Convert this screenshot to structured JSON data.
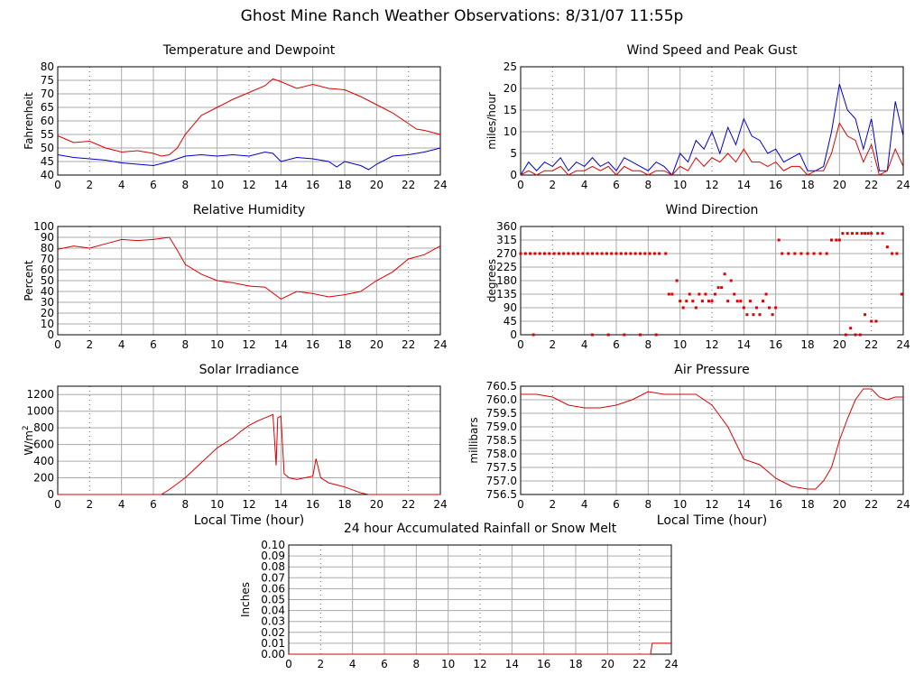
{
  "page_title": "Ghost Mine Ranch Weather Observations: 8/31/07 11:55p",
  "colors": {
    "red": "#dd0000",
    "blue": "#0000cc",
    "grid": "#aaaaaa"
  },
  "chart_data": [
    {
      "id": "temp",
      "type": "line",
      "title": "Temperature and Dewpoint",
      "xlabel": "",
      "ylabel": "Fahrenheit",
      "ylim": [
        40,
        80
      ],
      "yticks": [
        40,
        45,
        50,
        55,
        60,
        65,
        70,
        75,
        80
      ],
      "xlim": [
        0,
        24
      ],
      "xticks": [
        0,
        2,
        4,
        6,
        8,
        10,
        12,
        14,
        16,
        18,
        20,
        22,
        24
      ],
      "series": [
        {
          "color": "#dd0000",
          "x": [
            0,
            1,
            2,
            3,
            4,
            5,
            6,
            6.5,
            7,
            7.5,
            8,
            9,
            10,
            11,
            12,
            13,
            13.5,
            14,
            15,
            16,
            17,
            18,
            19,
            20,
            21,
            22,
            22.5,
            23,
            24
          ],
          "y": [
            54.5,
            52,
            52.5,
            50,
            48.5,
            49,
            48,
            47,
            47.5,
            50,
            55,
            62,
            65,
            68,
            70.5,
            73,
            75.5,
            74.5,
            72,
            73.5,
            72,
            71.5,
            69,
            66,
            63,
            59,
            57,
            56.5,
            55
          ]
        },
        {
          "color": "#0000cc",
          "x": [
            0,
            1,
            2,
            3,
            4,
            5,
            6,
            7,
            8,
            9,
            10,
            11,
            12,
            13,
            13.5,
            14,
            15,
            16,
            17,
            17.5,
            18,
            19,
            19.5,
            20,
            21,
            22,
            23,
            24
          ],
          "y": [
            47.5,
            46.5,
            46,
            45.5,
            44.5,
            44,
            43.5,
            45,
            47,
            47.5,
            47,
            47.5,
            47,
            48.5,
            48,
            45,
            46.5,
            46,
            45,
            43,
            45,
            43.5,
            42,
            44,
            47,
            47.5,
            48.5,
            50
          ]
        }
      ]
    },
    {
      "id": "wind",
      "type": "line",
      "title": "Wind Speed and Peak Gust",
      "xlabel": "",
      "ylabel": "miles/hour",
      "ylim": [
        0,
        25
      ],
      "yticks": [
        0,
        5,
        10,
        15,
        20,
        25
      ],
      "xlim": [
        0,
        24
      ],
      "xticks": [
        0,
        2,
        4,
        6,
        8,
        10,
        12,
        14,
        16,
        18,
        20,
        22,
        24
      ],
      "series": [
        {
          "color": "#0000cc",
          "x": [
            0,
            0.5,
            1,
            1.5,
            2,
            2.5,
            3,
            3.5,
            4,
            4.5,
            5,
            5.5,
            6,
            6.5,
            7,
            7.5,
            8,
            8.5,
            9,
            9.5,
            10,
            10.5,
            11,
            11.5,
            12,
            12.5,
            13,
            13.5,
            14,
            14.5,
            15,
            15.5,
            16,
            16.5,
            17,
            17.5,
            18,
            18.5,
            19,
            19.5,
            20,
            20.5,
            21,
            21.5,
            22,
            22.5,
            23,
            23.5,
            24
          ],
          "y": [
            0,
            3,
            1,
            3,
            2,
            4,
            1,
            3,
            2,
            4,
            2,
            3,
            1,
            4,
            3,
            2,
            1,
            3,
            2,
            0,
            5,
            3,
            8,
            6,
            10,
            5,
            11,
            7,
            13,
            9,
            8,
            5,
            6,
            3,
            4,
            5,
            1,
            1,
            2,
            10,
            21,
            15,
            13,
            6,
            13,
            1,
            1,
            17,
            9
          ]
        },
        {
          "color": "#dd0000",
          "x": [
            0,
            0.5,
            1,
            1.5,
            2,
            2.5,
            3,
            3.5,
            4,
            4.5,
            5,
            5.5,
            6,
            6.5,
            7,
            7.5,
            8,
            8.5,
            9,
            9.5,
            10,
            10.5,
            11,
            11.5,
            12,
            12.5,
            13,
            13.5,
            14,
            14.5,
            15,
            15.5,
            16,
            16.5,
            17,
            17.5,
            18,
            18.5,
            19,
            19.5,
            20,
            20.5,
            21,
            21.5,
            22,
            22.5,
            23,
            23.5,
            24
          ],
          "y": [
            0,
            1,
            0,
            1,
            1,
            2,
            0,
            1,
            1,
            2,
            1,
            2,
            0,
            2,
            1,
            1,
            0,
            1,
            1,
            0,
            2,
            1,
            4,
            2,
            4,
            3,
            5,
            3,
            6,
            3,
            3,
            2,
            3,
            1,
            2,
            2,
            0,
            1,
            1,
            5,
            12,
            9,
            8,
            3,
            7,
            0,
            1,
            6,
            2
          ]
        }
      ]
    },
    {
      "id": "rh",
      "type": "line",
      "title": "Relative Humidity",
      "xlabel": "",
      "ylabel": "Percent",
      "ylim": [
        0,
        100
      ],
      "yticks": [
        0,
        10,
        20,
        30,
        40,
        50,
        60,
        70,
        80,
        90,
        100
      ],
      "xlim": [
        0,
        24
      ],
      "xticks": [
        0,
        2,
        4,
        6,
        8,
        10,
        12,
        14,
        16,
        18,
        20,
        22,
        24
      ],
      "series": [
        {
          "color": "#dd0000",
          "x": [
            0,
            1,
            2,
            3,
            4,
            5,
            6,
            7,
            7.5,
            8,
            9,
            10,
            11,
            12,
            13,
            14,
            15,
            16,
            17,
            18,
            19,
            20,
            21,
            22,
            23,
            24
          ],
          "y": [
            79,
            82,
            80,
            84,
            88,
            87,
            88,
            90,
            78,
            65,
            56,
            50,
            48,
            45,
            44,
            33,
            40,
            38,
            35,
            37,
            40,
            50,
            58,
            70,
            74,
            82
          ]
        }
      ]
    },
    {
      "id": "wdir",
      "type": "scatter",
      "title": "Wind Direction",
      "xlabel": "",
      "ylabel": "degrees",
      "ylim": [
        0,
        360
      ],
      "yticks": [
        0,
        45,
        90,
        135,
        180,
        225,
        270,
        315,
        360
      ],
      "xlim": [
        0,
        24
      ],
      "xticks": [
        0,
        2,
        4,
        6,
        8,
        10,
        12,
        14,
        16,
        18,
        20,
        22,
        24
      ],
      "points": {
        "color": "#dd0000",
        "x": [
          0,
          0.3,
          0.6,
          0.9,
          1.2,
          1.5,
          1.8,
          2.1,
          2.4,
          2.7,
          3,
          3.3,
          3.6,
          3.9,
          4.2,
          4.5,
          4.8,
          5.1,
          5.4,
          5.7,
          6,
          6.3,
          6.6,
          6.9,
          7.2,
          7.5,
          7.8,
          8.1,
          8.4,
          8.7,
          9.1,
          0.8,
          4.5,
          5.5,
          6.5,
          7.5,
          8.5,
          9.3,
          9.5,
          9.8,
          10,
          10.2,
          10.4,
          10.6,
          10.8,
          11,
          11.2,
          11.4,
          11.6,
          11.8,
          12,
          12.2,
          12.4,
          12.6,
          12.8,
          13,
          13.2,
          13.4,
          13.6,
          13.8,
          14,
          14.2,
          14.4,
          14.6,
          14.8,
          15,
          15.2,
          15.4,
          15.6,
          15.8,
          16,
          16.2,
          16.4,
          16.8,
          17.2,
          17.6,
          18,
          18.4,
          18.8,
          19.2,
          19.5,
          19.8,
          20,
          20.2,
          20.5,
          20.8,
          21.1,
          21.4,
          21.6,
          21.8,
          22,
          22.4,
          22.7,
          23,
          23.3,
          23.6,
          23.9,
          20.4,
          20.7,
          21,
          21.3,
          21.6,
          22,
          22.3
        ],
        "y": [
          270,
          270,
          270,
          270,
          270,
          270,
          270,
          270,
          270,
          270,
          270,
          270,
          270,
          270,
          270,
          270,
          270,
          270,
          270,
          270,
          270,
          270,
          270,
          270,
          270,
          270,
          270,
          270,
          270,
          270,
          270,
          0,
          0,
          0,
          0,
          0,
          0,
          135,
          135,
          180,
          112,
          90,
          112,
          135,
          112,
          90,
          135,
          112,
          135,
          112,
          112,
          135,
          157,
          157,
          202,
          112,
          180,
          135,
          112,
          112,
          90,
          67,
          112,
          67,
          90,
          67,
          112,
          135,
          90,
          67,
          90,
          315,
          270,
          270,
          270,
          270,
          270,
          270,
          270,
          270,
          315,
          315,
          315,
          337,
          337,
          337,
          337,
          337,
          337,
          337,
          337,
          337,
          337,
          292,
          270,
          270,
          135,
          0,
          22,
          0,
          0,
          67,
          45,
          45
        ]
      }
    },
    {
      "id": "solar",
      "type": "line",
      "title": "Solar Irradiance",
      "xlabel": "Local Time (hour)",
      "ylabel": "W/m",
      "ylabel_sup": "2",
      "ylim": [
        0,
        1300
      ],
      "yticks": [
        0,
        200,
        400,
        600,
        800,
        1000,
        1200
      ],
      "xlim": [
        0,
        24
      ],
      "xticks": [
        0,
        2,
        4,
        6,
        8,
        10,
        12,
        14,
        16,
        18,
        20,
        22,
        24
      ],
      "series": [
        {
          "color": "#dd0000",
          "x": [
            0,
            6.5,
            7,
            8,
            9,
            10,
            10.5,
            11,
            11.5,
            12,
            12.5,
            13,
            13.5,
            13.7,
            13.8,
            14,
            14.2,
            14.5,
            15,
            15.5,
            16,
            16.2,
            16.5,
            17,
            18,
            19,
            19.5,
            20,
            24
          ],
          "y": [
            0,
            0,
            60,
            200,
            380,
            560,
            620,
            680,
            760,
            830,
            880,
            920,
            960,
            350,
            920,
            940,
            250,
            200,
            180,
            200,
            220,
            430,
            200,
            140,
            90,
            20,
            0,
            0,
            0
          ]
        }
      ]
    },
    {
      "id": "pressure",
      "type": "line",
      "title": "Air Pressure",
      "xlabel": "Local Time (hour)",
      "ylabel": "millibars",
      "ylim": [
        756.5,
        760.5
      ],
      "yticks": [
        756.5,
        757.0,
        757.5,
        758.0,
        758.5,
        759.0,
        759.5,
        760.0,
        760.5
      ],
      "ytick_labels": [
        "756.5",
        "757.0",
        "757.5",
        "758.0",
        "758.5",
        "759.0",
        "759.5",
        "760.0",
        "760.5"
      ],
      "xlim": [
        0,
        24
      ],
      "xticks": [
        0,
        2,
        4,
        6,
        8,
        10,
        12,
        14,
        16,
        18,
        20,
        22,
        24
      ],
      "series": [
        {
          "color": "#dd0000",
          "x": [
            0,
            1,
            2,
            3,
            4,
            5,
            6,
            7,
            8,
            9,
            10,
            11,
            12,
            13,
            14,
            15,
            16,
            17,
            18,
            18.5,
            19,
            19.5,
            20,
            20.5,
            21,
            21.5,
            22,
            22.5,
            23,
            23.5,
            24
          ],
          "y": [
            760.2,
            760.2,
            760.1,
            759.8,
            759.7,
            759.7,
            759.8,
            760.0,
            760.3,
            760.2,
            760.2,
            760.2,
            759.8,
            759.0,
            757.8,
            757.6,
            757.1,
            756.8,
            756.7,
            756.7,
            757.0,
            757.5,
            758.5,
            759.3,
            760.0,
            760.4,
            760.4,
            760.1,
            760.0,
            760.1,
            760.1
          ]
        }
      ]
    },
    {
      "id": "rain",
      "type": "line",
      "title": "24 hour Accumulated Rainfall or Snow Melt",
      "xlabel": "",
      "ylabel": "Inches",
      "ylim": [
        0,
        0.1
      ],
      "yticks": [
        0,
        0.01,
        0.02,
        0.03,
        0.04,
        0.05,
        0.06,
        0.07,
        0.08,
        0.09,
        0.1
      ],
      "ytick_labels": [
        "0.00",
        "0.01",
        "0.02",
        "0.03",
        "0.04",
        "0.05",
        "0.06",
        "0.07",
        "0.08",
        "0.09",
        "0.10"
      ],
      "xlim": [
        0,
        24
      ],
      "xticks": [
        0,
        2,
        4,
        6,
        8,
        10,
        12,
        14,
        16,
        18,
        20,
        22,
        24
      ],
      "series": [
        {
          "color": "#dd0000",
          "x": [
            0,
            22.7,
            22.8,
            24
          ],
          "y": [
            0,
            0,
            0.01,
            0.01
          ]
        }
      ]
    }
  ]
}
